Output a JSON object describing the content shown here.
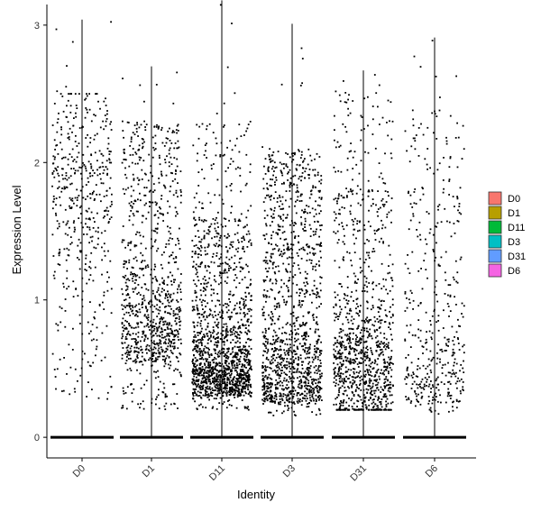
{
  "chart_data": {
    "type": "scatter",
    "plot_style": "violin-jitter (violin outlines not visible, points only)",
    "title": "",
    "xlabel": "Identity",
    "ylabel": "Expression Level",
    "categories": [
      "D0",
      "D1",
      "D11",
      "D3",
      "D31",
      "D6"
    ],
    "ylim": [
      -0.15,
      3.15
    ],
    "yticks": [
      0,
      1,
      2,
      3
    ],
    "grid": false,
    "legend": {
      "placement": "right",
      "entries": [
        "D0",
        "D1",
        "D11",
        "D3",
        "D31",
        "D6"
      ]
    },
    "colors": {
      "D0": "#F8766D",
      "D1": "#B79F00",
      "D11": "#00BA38",
      "D3": "#00BFC4",
      "D31": "#619CFF",
      "D6": "#F564E3"
    },
    "point_color": "#000000",
    "series": [
      {
        "category": "D0",
        "max": 3.04,
        "zero_band": true,
        "dense_range": [
          0.25,
          2.45
        ],
        "peak_region": [
          1.5,
          2.4
        ],
        "nonzero_count_est": 480
      },
      {
        "category": "D1",
        "max": 2.7,
        "zero_band": true,
        "dense_range": [
          0.2,
          2.3
        ],
        "peak_region": [
          0.4,
          1.0
        ],
        "nonzero_count_est": 950
      },
      {
        "category": "D11",
        "max": 3.18,
        "zero_band": true,
        "dense_range": [
          0.2,
          2.3
        ],
        "peak_region": [
          0.25,
          0.8
        ],
        "nonzero_count_est": 1500
      },
      {
        "category": "D3",
        "max": 3.01,
        "zero_band": true,
        "dense_range": [
          0.15,
          2.1
        ],
        "peak_region": [
          0.2,
          1.5
        ],
        "nonzero_count_est": 1250
      },
      {
        "category": "D31",
        "max": 2.67,
        "zero_band": true,
        "dense_range": [
          0.2,
          2.5
        ],
        "peak_region": [
          0.3,
          0.9
        ],
        "nonzero_count_est": 1050
      },
      {
        "category": "D6",
        "max": 2.91,
        "zero_band": true,
        "dense_range": [
          0.15,
          2.4
        ],
        "peak_region": [
          0.2,
          1.2
        ],
        "nonzero_count_est": 420
      }
    ]
  }
}
